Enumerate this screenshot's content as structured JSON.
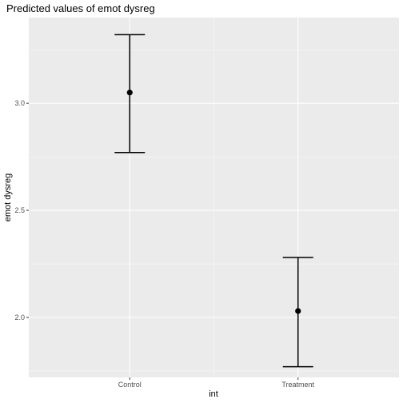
{
  "chart_data": {
    "type": "scatter",
    "title": "Predicted values of emot dysreg",
    "xlabel": "int",
    "ylabel": "emot dysreg",
    "categories": [
      "Control",
      "Treatment"
    ],
    "points": [
      {
        "category": "Control",
        "value": 3.05,
        "lower": 2.77,
        "upper": 3.32
      },
      {
        "category": "Treatment",
        "value": 2.03,
        "lower": 1.77,
        "upper": 2.28
      }
    ],
    "y_ticks": [
      2.0,
      2.5,
      3.0
    ],
    "y_tick_labels": [
      "2.0",
      "2.5",
      "3.0"
    ],
    "ylim": [
      1.72,
      3.4
    ],
    "grid": true,
    "colors": {
      "panel": "#ebebeb",
      "grid_major": "#ffffff",
      "grid_minor": "#f7f7f7",
      "marks": "#000000"
    }
  }
}
